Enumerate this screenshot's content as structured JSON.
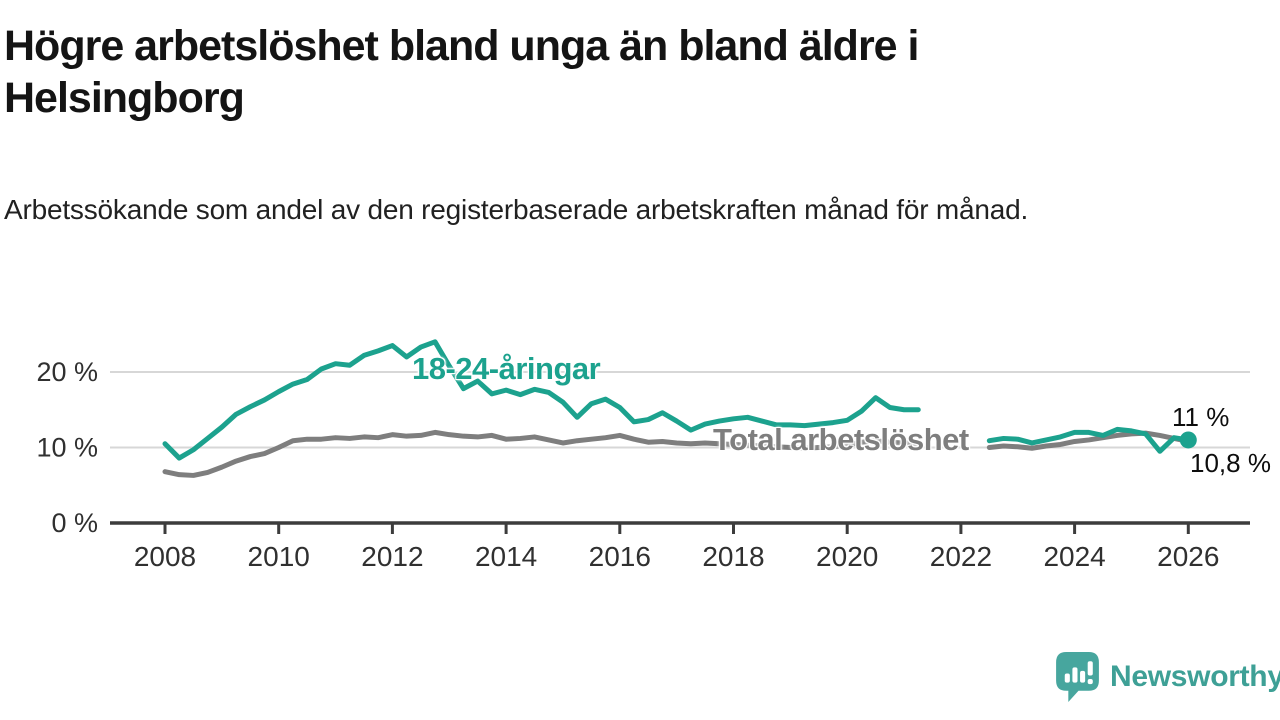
{
  "header": {
    "title": "Högre arbetslöshet bland unga än bland äldre i Helsingborg",
    "subtitle": "Arbetssökande som andel av den registerbaserade arbetskraften månad för månad."
  },
  "footer": {
    "brand": "Newsworthy"
  },
  "colors": {
    "youth": "#1CA28E",
    "total": "#7E7E7E",
    "grid": "#D7D7D7",
    "axis": "#3C3C3C",
    "tick_text": "#303030",
    "end_label_text": "#0D0D0D",
    "logo_icon": "#47A69E",
    "logo_text": "#3EA096"
  },
  "chart_data": {
    "type": "line",
    "unit": "%",
    "grid": "horizontal",
    "legend_position": "inline-labels-on-lines",
    "x_start": 2008.0,
    "x_step": 0.25,
    "x_axis": {
      "min": 2007.0,
      "max": 2027.1,
      "ticks": [
        2008,
        2010,
        2012,
        2014,
        2016,
        2018,
        2020,
        2022,
        2024,
        2026
      ],
      "tick_labels": [
        "2008",
        "2010",
        "2012",
        "2014",
        "2016",
        "2018",
        "2020",
        "2022",
        "2024",
        "2026"
      ]
    },
    "y_axis": {
      "min": 0,
      "max": 26,
      "ticks": [
        0,
        10,
        20
      ],
      "tick_labels": [
        "0 %",
        "10 %",
        "20 %"
      ]
    },
    "series": [
      {
        "name": "18-24-åringar",
        "color": "#1CA28E",
        "end_marker": true,
        "final_value": 11.0,
        "values": [
          10.5,
          8.6,
          9.7,
          11.2,
          12.7,
          14.4,
          15.4,
          16.3,
          17.4,
          18.4,
          19.0,
          20.4,
          21.1,
          20.9,
          22.2,
          22.8,
          23.5,
          22.0,
          23.3,
          24.0,
          20.8,
          17.8,
          18.8,
          17.1,
          17.6,
          17.0,
          17.7,
          17.3,
          16.0,
          14.0,
          15.8,
          16.4,
          15.3,
          13.4,
          13.7,
          14.6,
          13.5,
          12.3,
          13.1,
          13.5,
          13.8,
          14.0,
          13.5,
          13.0,
          13.0,
          12.9,
          13.1,
          13.3,
          13.6,
          14.8,
          16.6,
          15.3,
          15.0,
          15.0,
          null,
          null,
          null,
          null,
          10.9,
          11.2,
          11.1,
          10.6,
          11.0,
          11.4,
          12.0,
          12.0,
          11.6,
          12.4,
          12.2,
          11.8,
          9.5,
          11.3,
          11.0
        ]
      },
      {
        "name": "Total arbetslöshet",
        "color": "#7E7E7E",
        "end_marker": false,
        "final_value": 10.8,
        "values": [
          6.8,
          6.4,
          6.3,
          6.7,
          7.4,
          8.2,
          8.8,
          9.2,
          10.0,
          10.9,
          11.1,
          11.1,
          11.3,
          11.2,
          11.4,
          11.3,
          11.7,
          11.5,
          11.6,
          12.0,
          11.7,
          11.5,
          11.4,
          11.6,
          11.1,
          11.2,
          11.4,
          11.0,
          10.6,
          10.9,
          11.1,
          11.3,
          11.6,
          11.1,
          10.7,
          10.8,
          10.6,
          10.5,
          10.6,
          10.5,
          10.4,
          10.3,
          10.2,
          10.1,
          10.0,
          9.9,
          10.0,
          10.1,
          10.3,
          10.7,
          10.9,
          10.7,
          10.6,
          10.5,
          null,
          null,
          null,
          null,
          10.0,
          10.2,
          10.1,
          9.9,
          10.2,
          10.4,
          10.8,
          11.0,
          11.3,
          11.6,
          11.8,
          11.9,
          11.6,
          11.2,
          10.8
        ]
      }
    ],
    "end_labels": {
      "youth": "11 %",
      "total": "10,8 %"
    }
  }
}
